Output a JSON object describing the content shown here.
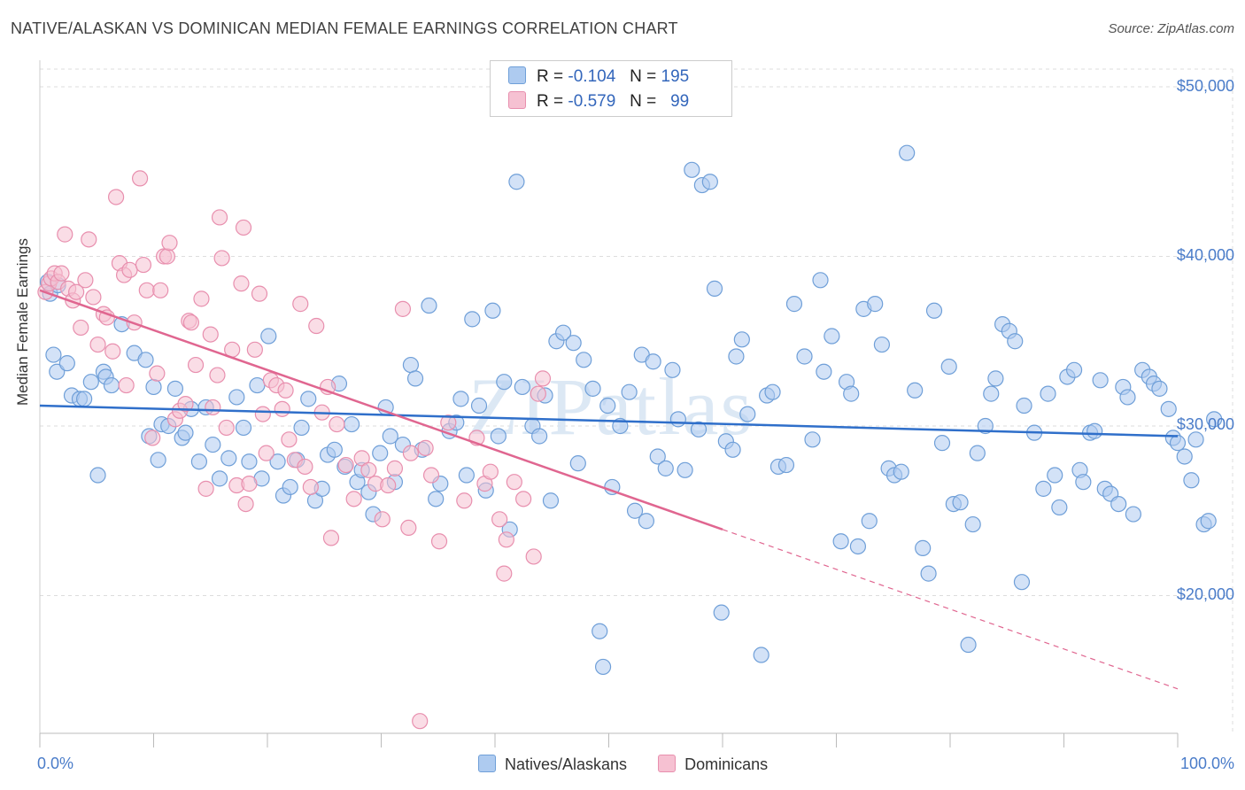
{
  "title": "NATIVE/ALASKAN VS DOMINICAN MEDIAN FEMALE EARNINGS CORRELATION CHART",
  "source": "Source: ZipAtlas.com",
  "watermark": "ZIPatlas",
  "colors": {
    "blue_fill": "#aecbf0",
    "blue_stroke": "#6f9fd8",
    "blue_line": "#2f6fca",
    "pink_fill": "#f6c1d2",
    "pink_stroke": "#e88fae",
    "pink_line": "#e06690",
    "grid": "#dddddd",
    "axis_text": "#4a7cc9"
  },
  "legend_top": {
    "rows": [
      {
        "r_label": "R =",
        "r_value": "-0.104",
        "n_label": "N =",
        "n_value": "195"
      },
      {
        "r_label": "R =",
        "r_value": "-0.579",
        "n_label": "N =",
        "n_value": "99"
      }
    ]
  },
  "legend_bottom": [
    "Natives/Alaskans",
    "Dominicans"
  ],
  "chart_data": {
    "type": "scatter",
    "title": "NATIVE/ALASKAN VS DOMINICAN MEDIAN FEMALE EARNINGS CORRELATION CHART",
    "xlabel": "",
    "ylabel": "Median Female Earnings",
    "x_tick_labels": [
      "0.0%",
      "100.0%"
    ],
    "y_tick_labels": [
      "$50,000",
      "$40,000",
      "$30,000",
      "$20,000"
    ],
    "xlim": [
      0,
      100
    ],
    "ylim": [
      11000,
      52000
    ],
    "grid": true,
    "series": [
      {
        "name": "Natives/Alaskans",
        "r": -0.104,
        "n": 195,
        "trend": {
          "x": [
            0,
            100
          ],
          "y": [
            31200,
            29400
          ],
          "dashed_from": null
        },
        "points": [
          [
            1.2,
            34.2
          ],
          [
            1.5,
            33.2
          ],
          [
            2.4,
            33.7
          ],
          [
            2.8,
            31.8
          ],
          [
            3.5,
            31.6
          ],
          [
            3.9,
            31.6
          ],
          [
            4.5,
            32.6
          ],
          [
            5.6,
            33.2
          ],
          [
            5.8,
            32.9
          ],
          [
            6.3,
            32.4
          ],
          [
            7.2,
            36.0
          ],
          [
            8.3,
            34.3
          ],
          [
            9.6,
            29.4
          ],
          [
            10.0,
            32.3
          ],
          [
            10.4,
            28.0
          ],
          [
            10.7,
            30.1
          ],
          [
            11.3,
            30.0
          ],
          [
            11.9,
            32.2
          ],
          [
            12.5,
            29.3
          ],
          [
            12.8,
            29.6
          ],
          [
            13.3,
            31.0
          ],
          [
            14.0,
            27.9
          ],
          [
            14.6,
            31.1
          ],
          [
            15.2,
            28.9
          ],
          [
            15.8,
            26.9
          ],
          [
            16.6,
            28.1
          ],
          [
            17.3,
            31.7
          ],
          [
            17.9,
            29.9
          ],
          [
            18.4,
            27.9
          ],
          [
            19.1,
            32.4
          ],
          [
            19.5,
            26.9
          ],
          [
            20.1,
            35.3
          ],
          [
            20.9,
            27.9
          ],
          [
            21.4,
            25.9
          ],
          [
            22.0,
            26.4
          ],
          [
            22.6,
            28.0
          ],
          [
            23.0,
            29.9
          ],
          [
            23.6,
            31.6
          ],
          [
            24.2,
            25.6
          ],
          [
            24.8,
            26.3
          ],
          [
            25.3,
            28.3
          ],
          [
            25.9,
            28.6
          ],
          [
            26.3,
            32.5
          ],
          [
            26.8,
            27.6
          ],
          [
            27.4,
            30.1
          ],
          [
            27.9,
            26.7
          ],
          [
            28.3,
            27.4
          ],
          [
            28.9,
            26.1
          ],
          [
            29.3,
            24.8
          ],
          [
            29.9,
            28.4
          ],
          [
            30.4,
            31.1
          ],
          [
            30.8,
            29.4
          ],
          [
            31.2,
            26.7
          ],
          [
            31.9,
            28.9
          ],
          [
            32.6,
            33.6
          ],
          [
            33.0,
            32.8
          ],
          [
            33.6,
            28.6
          ],
          [
            34.2,
            37.1
          ],
          [
            34.8,
            25.7
          ],
          [
            35.2,
            26.6
          ],
          [
            36.0,
            29.7
          ],
          [
            36.6,
            30.2
          ],
          [
            37.0,
            31.6
          ],
          [
            37.5,
            27.1
          ],
          [
            38.0,
            36.3
          ],
          [
            38.6,
            31.2
          ],
          [
            39.2,
            26.2
          ],
          [
            39.8,
            36.8
          ],
          [
            40.3,
            29.4
          ],
          [
            40.8,
            32.6
          ],
          [
            41.3,
            23.9
          ],
          [
            41.9,
            44.4
          ],
          [
            42.4,
            32.3
          ],
          [
            43.3,
            30.0
          ],
          [
            43.9,
            29.4
          ],
          [
            44.4,
            31.8
          ],
          [
            44.9,
            25.6
          ],
          [
            45.4,
            35.0
          ],
          [
            46.0,
            35.5
          ],
          [
            46.9,
            34.9
          ],
          [
            47.3,
            27.8
          ],
          [
            47.8,
            33.9
          ],
          [
            48.6,
            32.2
          ],
          [
            49.2,
            17.9
          ],
          [
            49.5,
            15.8
          ],
          [
            49.9,
            31.2
          ],
          [
            50.3,
            26.4
          ],
          [
            51.0,
            30.0
          ],
          [
            51.8,
            32.0
          ],
          [
            52.3,
            25.0
          ],
          [
            52.9,
            34.2
          ],
          [
            53.3,
            24.4
          ],
          [
            53.9,
            33.8
          ],
          [
            54.3,
            28.2
          ],
          [
            55.0,
            27.5
          ],
          [
            55.6,
            33.3
          ],
          [
            56.1,
            30.4
          ],
          [
            56.7,
            27.4
          ],
          [
            57.3,
            45.1
          ],
          [
            57.9,
            29.8
          ],
          [
            58.2,
            44.2
          ],
          [
            58.9,
            44.4
          ],
          [
            59.3,
            38.1
          ],
          [
            59.9,
            19.0
          ],
          [
            60.3,
            29.1
          ],
          [
            60.9,
            28.6
          ],
          [
            61.2,
            34.1
          ],
          [
            61.7,
            35.1
          ],
          [
            62.2,
            30.7
          ],
          [
            63.4,
            16.5
          ],
          [
            63.9,
            31.8
          ],
          [
            64.4,
            32.0
          ],
          [
            64.9,
            27.6
          ],
          [
            65.6,
            27.7
          ],
          [
            66.3,
            37.2
          ],
          [
            67.2,
            34.1
          ],
          [
            67.9,
            29.2
          ],
          [
            68.6,
            38.6
          ],
          [
            68.9,
            33.2
          ],
          [
            69.6,
            35.3
          ],
          [
            70.4,
            23.2
          ],
          [
            70.9,
            32.6
          ],
          [
            71.3,
            31.9
          ],
          [
            71.9,
            22.9
          ],
          [
            72.4,
            36.9
          ],
          [
            72.9,
            24.4
          ],
          [
            73.4,
            37.2
          ],
          [
            74.0,
            34.8
          ],
          [
            74.6,
            27.5
          ],
          [
            75.1,
            27.1
          ],
          [
            75.7,
            27.3
          ],
          [
            76.2,
            46.1
          ],
          [
            76.9,
            32.1
          ],
          [
            77.6,
            22.8
          ],
          [
            78.1,
            21.3
          ],
          [
            78.6,
            36.8
          ],
          [
            79.3,
            29.0
          ],
          [
            79.9,
            33.5
          ],
          [
            80.3,
            25.4
          ],
          [
            80.9,
            25.5
          ],
          [
            81.6,
            17.1
          ],
          [
            82.0,
            24.2
          ],
          [
            82.4,
            28.4
          ],
          [
            83.1,
            30.0
          ],
          [
            83.6,
            31.9
          ],
          [
            84.0,
            32.8
          ],
          [
            84.6,
            36.0
          ],
          [
            85.2,
            35.6
          ],
          [
            85.7,
            35.0
          ],
          [
            86.3,
            20.8
          ],
          [
            86.5,
            31.2
          ],
          [
            87.4,
            29.6
          ],
          [
            88.2,
            26.3
          ],
          [
            88.6,
            31.9
          ],
          [
            89.2,
            27.1
          ],
          [
            89.6,
            25.2
          ],
          [
            90.3,
            32.9
          ],
          [
            90.9,
            33.3
          ],
          [
            91.4,
            27.4
          ],
          [
            91.7,
            26.7
          ],
          [
            92.3,
            29.6
          ],
          [
            92.7,
            29.7
          ],
          [
            93.2,
            32.7
          ],
          [
            93.6,
            26.3
          ],
          [
            94.1,
            26.0
          ],
          [
            94.8,
            25.4
          ],
          [
            95.2,
            32.3
          ],
          [
            95.6,
            31.7
          ],
          [
            96.1,
            24.8
          ],
          [
            96.9,
            33.3
          ],
          [
            97.5,
            32.9
          ],
          [
            97.9,
            32.5
          ],
          [
            98.4,
            32.2
          ],
          [
            99.2,
            31.0
          ],
          [
            99.6,
            29.3
          ],
          [
            100.0,
            29.0
          ],
          [
            100.6,
            28.2
          ],
          [
            101.2,
            26.8
          ],
          [
            101.6,
            29.2
          ],
          [
            102.3,
            24.2
          ],
          [
            102.7,
            24.4
          ],
          [
            103.2,
            30.4
          ],
          [
            0.7,
            38.5
          ],
          [
            0.9,
            37.8
          ],
          [
            1.6,
            38.3
          ],
          [
            5.1,
            27.1
          ],
          [
            9.3,
            33.9
          ]
        ]
      },
      {
        "name": "Dominicans",
        "r": -0.579,
        "n": 99,
        "trend": {
          "x": [
            0,
            100
          ],
          "y": [
            38000,
            14500
          ],
          "dashed_from": 60
        },
        "points": [
          [
            0.5,
            37.9
          ],
          [
            0.8,
            38.4
          ],
          [
            1.0,
            38.7
          ],
          [
            1.3,
            39.0
          ],
          [
            1.6,
            38.5
          ],
          [
            1.9,
            39.0
          ],
          [
            2.2,
            41.3
          ],
          [
            2.5,
            38.1
          ],
          [
            2.9,
            37.4
          ],
          [
            3.2,
            37.9
          ],
          [
            3.6,
            35.8
          ],
          [
            4.0,
            38.6
          ],
          [
            4.3,
            41.0
          ],
          [
            4.7,
            37.6
          ],
          [
            5.1,
            34.8
          ],
          [
            5.6,
            36.6
          ],
          [
            5.9,
            36.4
          ],
          [
            6.4,
            34.4
          ],
          [
            6.7,
            43.5
          ],
          [
            7.0,
            39.6
          ],
          [
            7.4,
            38.9
          ],
          [
            7.6,
            32.4
          ],
          [
            7.9,
            39.2
          ],
          [
            8.3,
            36.1
          ],
          [
            8.8,
            44.6
          ],
          [
            9.1,
            39.5
          ],
          [
            9.4,
            38.0
          ],
          [
            9.9,
            29.3
          ],
          [
            10.3,
            33.1
          ],
          [
            10.6,
            38.0
          ],
          [
            10.9,
            40.0
          ],
          [
            11.2,
            40.0
          ],
          [
            11.4,
            40.8
          ],
          [
            11.9,
            30.4
          ],
          [
            12.3,
            30.9
          ],
          [
            12.8,
            31.3
          ],
          [
            13.1,
            36.2
          ],
          [
            13.3,
            36.1
          ],
          [
            13.7,
            33.6
          ],
          [
            14.2,
            37.5
          ],
          [
            14.6,
            26.3
          ],
          [
            15.0,
            35.4
          ],
          [
            15.2,
            31.1
          ],
          [
            15.6,
            33.0
          ],
          [
            15.8,
            42.3
          ],
          [
            16.0,
            39.9
          ],
          [
            16.4,
            29.9
          ],
          [
            16.9,
            34.5
          ],
          [
            17.3,
            26.5
          ],
          [
            17.7,
            38.4
          ],
          [
            17.9,
            41.7
          ],
          [
            18.1,
            25.4
          ],
          [
            18.4,
            26.6
          ],
          [
            18.9,
            34.5
          ],
          [
            19.3,
            37.8
          ],
          [
            19.6,
            30.7
          ],
          [
            19.9,
            28.4
          ],
          [
            20.3,
            32.7
          ],
          [
            20.8,
            32.4
          ],
          [
            21.3,
            31.0
          ],
          [
            21.6,
            32.1
          ],
          [
            21.9,
            29.2
          ],
          [
            22.4,
            28.0
          ],
          [
            22.9,
            37.2
          ],
          [
            23.3,
            27.6
          ],
          [
            23.8,
            26.4
          ],
          [
            24.3,
            35.9
          ],
          [
            24.8,
            30.8
          ],
          [
            25.3,
            32.3
          ],
          [
            25.6,
            23.4
          ],
          [
            26.1,
            30.1
          ],
          [
            26.9,
            27.7
          ],
          [
            27.6,
            25.7
          ],
          [
            28.3,
            28.1
          ],
          [
            28.9,
            27.4
          ],
          [
            29.5,
            26.6
          ],
          [
            30.1,
            24.5
          ],
          [
            30.6,
            26.5
          ],
          [
            31.2,
            27.5
          ],
          [
            31.9,
            36.9
          ],
          [
            32.4,
            24.0
          ],
          [
            32.6,
            28.4
          ],
          [
            33.4,
            12.6
          ],
          [
            33.9,
            28.7
          ],
          [
            34.4,
            27.1
          ],
          [
            35.1,
            23.2
          ],
          [
            35.9,
            30.2
          ],
          [
            37.3,
            25.6
          ],
          [
            38.4,
            29.3
          ],
          [
            39.1,
            26.6
          ],
          [
            39.6,
            27.3
          ],
          [
            40.4,
            24.5
          ],
          [
            41.0,
            23.3
          ],
          [
            40.8,
            21.3
          ],
          [
            41.7,
            26.7
          ],
          [
            42.5,
            25.7
          ],
          [
            43.4,
            22.3
          ],
          [
            43.8,
            31.9
          ],
          [
            44.2,
            32.8
          ]
        ]
      }
    ]
  }
}
